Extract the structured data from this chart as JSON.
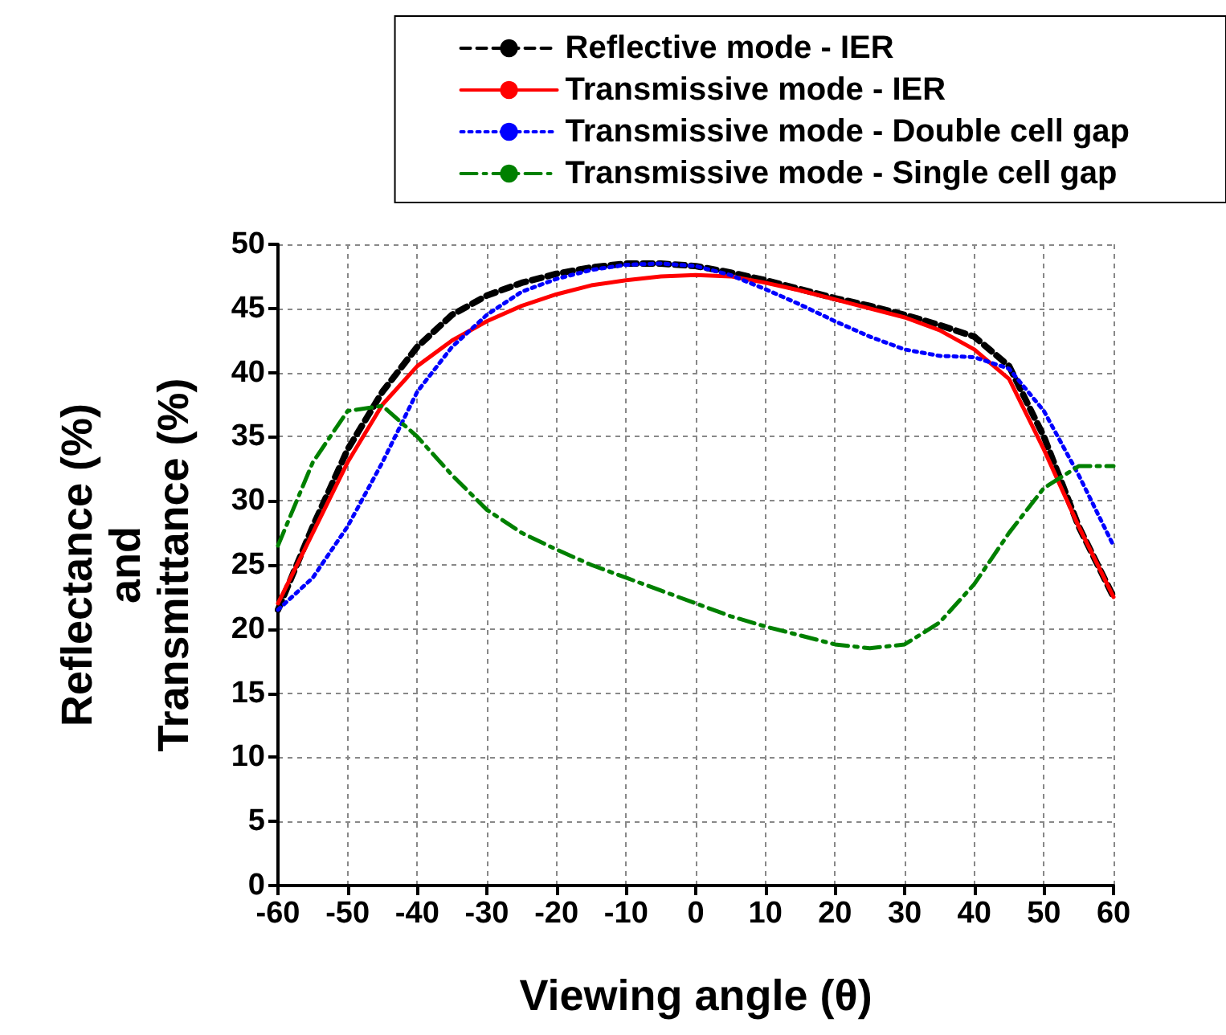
{
  "chart_data": {
    "type": "line",
    "xlabel": "Viewing angle (θ)",
    "ylabel": "Reflectance (%)\nand\nTransmittance (%)",
    "x": [
      -60,
      -55,
      -50,
      -45,
      -40,
      -35,
      -30,
      -25,
      -20,
      -15,
      -10,
      -5,
      0,
      5,
      10,
      15,
      20,
      25,
      30,
      35,
      40,
      45,
      50,
      55,
      60
    ],
    "series": [
      {
        "name": "Reflective mode - IER",
        "color": "#000000",
        "line_style": "dashed",
        "values": [
          21.5,
          28,
          34,
          38.5,
          42,
          44.5,
          46,
          47,
          47.7,
          48.2,
          48.5,
          48.5,
          48.3,
          47.8,
          47.2,
          46.5,
          45.8,
          45.2,
          44.5,
          43.7,
          42.8,
          40.5,
          35,
          28,
          22.5
        ]
      },
      {
        "name": "Transmissive mode - IER",
        "color": "#ff0000",
        "line_style": "solid",
        "values": [
          22,
          27.5,
          33,
          37.5,
          40.5,
          42.5,
          44,
          45.2,
          46.1,
          46.8,
          47.2,
          47.5,
          47.6,
          47.5,
          47,
          46.4,
          45.7,
          45,
          44.3,
          43.3,
          41.8,
          39.5,
          34,
          28,
          22.5
        ]
      },
      {
        "name": "Transmissive mode - Double cell gap",
        "color": "#0000ff",
        "line_style": "dotted",
        "values": [
          21.5,
          24,
          28,
          33,
          38.5,
          42,
          44.5,
          46.3,
          47.3,
          48,
          48.4,
          48.5,
          48.3,
          47.6,
          46.5,
          45.3,
          44,
          42.8,
          41.8,
          41.3,
          41.2,
          40.3,
          37,
          32,
          26.5
        ]
      },
      {
        "name": "Transmissive mode - Single cell gap",
        "color": "#008000",
        "line_style": "dashdot",
        "values": [
          26.5,
          33,
          37,
          37.4,
          35,
          32,
          29.3,
          27.5,
          26.2,
          25,
          24,
          23,
          22,
          21,
          20.2,
          19.5,
          18.8,
          18.5,
          18.8,
          20.5,
          23.5,
          27.5,
          31,
          32.7,
          32.7
        ]
      }
    ],
    "xlim": [
      -60,
      60
    ],
    "xticks": [
      -60,
      -50,
      -40,
      -30,
      -20,
      -10,
      0,
      10,
      20,
      30,
      40,
      50,
      60
    ],
    "ylim": [
      0,
      50
    ],
    "yticks": [
      0,
      5,
      10,
      15,
      20,
      25,
      30,
      35,
      40,
      45,
      50
    ],
    "grid": true,
    "legend": "top right",
    "marker": "none"
  }
}
